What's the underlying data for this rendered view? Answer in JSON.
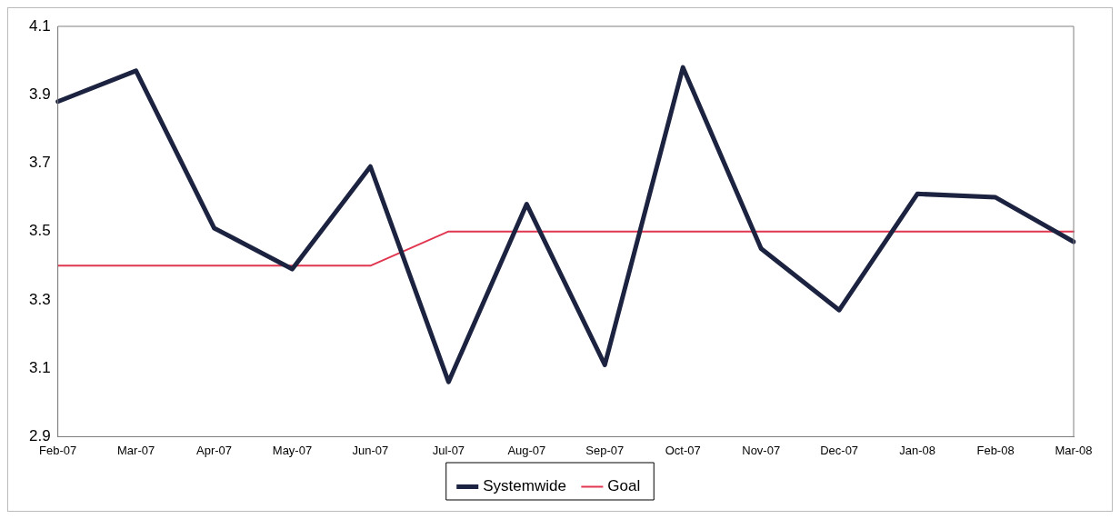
{
  "chart_data": {
    "type": "line",
    "categories": [
      "Feb-07",
      "Mar-07",
      "Apr-07",
      "May-07",
      "Jun-07",
      "Jul-07",
      "Aug-07",
      "Sep-07",
      "Oct-07",
      "Nov-07",
      "Dec-07",
      "Jan-08",
      "Feb-08",
      "Mar-08"
    ],
    "series": [
      {
        "name": "Systemwide",
        "color": "#1c2340",
        "values": [
          3.88,
          3.97,
          3.51,
          3.39,
          3.69,
          3.06,
          3.58,
          3.11,
          3.98,
          3.45,
          3.27,
          3.61,
          3.6,
          3.47
        ]
      },
      {
        "name": "Goal",
        "color": "#e0364f",
        "values": [
          3.4,
          3.4,
          3.4,
          3.4,
          3.4,
          3.5,
          3.5,
          3.5,
          3.5,
          3.5,
          3.5,
          3.5,
          3.5,
          3.5
        ]
      }
    ],
    "ylim": [
      2.9,
      4.1
    ],
    "yticks": [
      2.9,
      3.1,
      3.3,
      3.5,
      3.7,
      3.9,
      4.1
    ],
    "grid": false,
    "legend": "bottom",
    "marker": "none",
    "line_style": "solid"
  }
}
